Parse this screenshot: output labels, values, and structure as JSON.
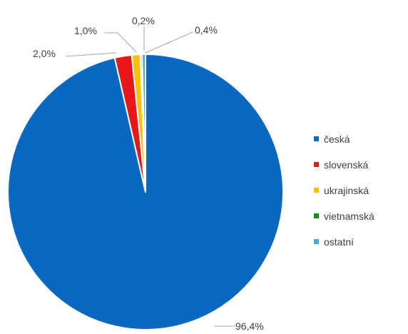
{
  "chart_data": {
    "type": "pie",
    "title": "",
    "legend_position": "right",
    "start_angle_deg": 0,
    "direction": "clockwise",
    "slices": [
      {
        "name": "česká",
        "value": 96.4,
        "label": "96,4%",
        "color": "#0b68c0"
      },
      {
        "name": "slovenská",
        "value": 2.0,
        "label": "2,0%",
        "color": "#e8171a"
      },
      {
        "name": "ukrajinská",
        "value": 1.0,
        "label": "1,0%",
        "color": "#ffc000"
      },
      {
        "name": "vietnamská",
        "value": 0.2,
        "label": "0,2%",
        "color": "#1a8a1a"
      },
      {
        "name": "ostatní",
        "value": 0.4,
        "label": "0,4%",
        "color": "#4bacc6"
      }
    ]
  },
  "colors": {
    "leader_line": "#a6a6a6",
    "text": "#404040",
    "slice_border": "#ffffff"
  }
}
